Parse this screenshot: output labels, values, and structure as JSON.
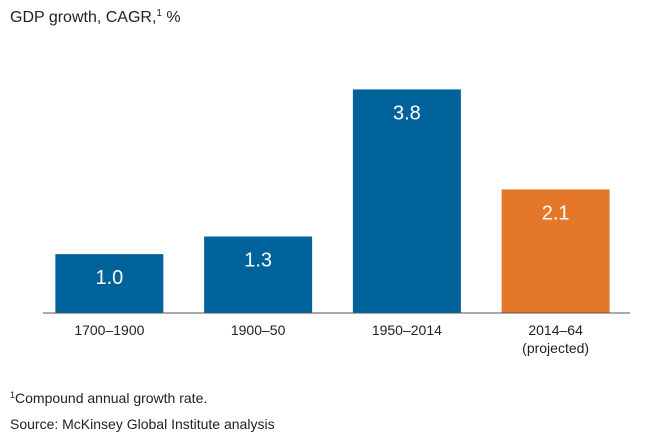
{
  "title": {
    "text": "GDP growth, CAGR,",
    "footnote_mark": "1",
    "unit": " %"
  },
  "chart_data": {
    "type": "bar",
    "categories": [
      "1700–1900",
      "1900–50",
      "1950–2014",
      "2014–64\n(projected)"
    ],
    "values": [
      1.0,
      1.3,
      3.8,
      2.1
    ],
    "value_labels": [
      "1.0",
      "1.3",
      "3.8",
      "2.1"
    ],
    "title": "GDP growth, CAGR,1 %",
    "xlabel": "",
    "ylabel": "",
    "ylim": [
      0,
      4.3
    ],
    "grid": false,
    "legend": "none",
    "colors": [
      "#00629b",
      "#00629b",
      "#00629b",
      "#e5772b"
    ],
    "label_color": "#ffffff",
    "baseline_color": "#555555"
  },
  "footnote": {
    "mark": "1",
    "text": "Compound annual growth rate."
  },
  "source": "Source: McKinsey Global Institute analysis"
}
